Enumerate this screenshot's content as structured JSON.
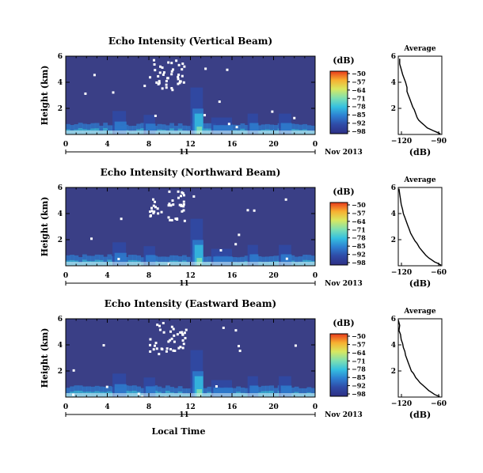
{
  "chart_data": [
    {
      "type": "heatmap",
      "title": "Echo Intensity (Vertical Beam)",
      "ylabel": "Height (km)",
      "x_tick_labels": [
        "0",
        "4",
        "8",
        "12",
        "16",
        "20",
        "0"
      ],
      "y_tick_labels": [
        "2",
        "4",
        "6"
      ],
      "xlim": [
        0,
        24
      ],
      "ylim": [
        0,
        6
      ],
      "day_label": "11",
      "date_label": "Nov 2013",
      "colorbar": {
        "unit_label": "(dB)",
        "tick_labels": [
          "−50",
          "−57",
          "−64",
          "−71",
          "−78",
          "−85",
          "−92",
          "−98"
        ],
        "range": [
          -98,
          -50
        ]
      },
      "profile": {
        "title": "Average",
        "xlabel": "(dB)",
        "x_tick_labels": [
          "−120",
          "−90"
        ],
        "xlim": [
          -120,
          -90
        ],
        "y_tick_labels": [
          "2",
          "4",
          "6"
        ],
        "ylim": [
          0,
          6
        ],
        "x": [
          -119,
          -119,
          -118,
          -117,
          -116,
          -115,
          -114,
          -114,
          -113,
          -112,
          -111,
          -110,
          -109,
          -108,
          -107,
          -106,
          -104,
          -102,
          -100,
          -98,
          -96,
          -94,
          -92,
          -91
        ],
        "y": [
          5.8,
          5.4,
          5.0,
          4.6,
          4.3,
          4.0,
          3.6,
          3.3,
          3.0,
          2.7,
          2.4,
          2.1,
          1.9,
          1.6,
          1.3,
          1.1,
          0.9,
          0.7,
          0.5,
          0.4,
          0.3,
          0.2,
          0.1,
          0.05
        ]
      }
    },
    {
      "type": "heatmap",
      "title": "Echo Intensity (Northward Beam)",
      "ylabel": "Height (km)",
      "x_tick_labels": [
        "0",
        "4",
        "8",
        "12",
        "16",
        "20",
        "0"
      ],
      "y_tick_labels": [
        "2",
        "4",
        "6"
      ],
      "xlim": [
        0,
        24
      ],
      "ylim": [
        0,
        6
      ],
      "day_label": "11",
      "date_label": "Nov 2013",
      "colorbar": {
        "unit_label": "(dB)",
        "tick_labels": [
          "−50",
          "−57",
          "−64",
          "−71",
          "−78",
          "−85",
          "−92",
          "−98"
        ],
        "range": [
          -98,
          -50
        ]
      },
      "profile": {
        "title": "Average",
        "xlabel": "(dB)",
        "x_tick_labels": [
          "−120",
          "−60"
        ],
        "xlim": [
          -120,
          -60
        ],
        "y_tick_labels": [
          "2",
          "4",
          "6"
        ],
        "ylim": [
          0,
          6
        ],
        "x": [
          -119,
          -118,
          -117,
          -116,
          -114,
          -113,
          -111,
          -109,
          -107,
          -105,
          -103,
          -100,
          -97,
          -94,
          -91,
          -88,
          -85,
          -82,
          -78,
          -74,
          -70,
          -66,
          -63,
          -61
        ],
        "y": [
          5.9,
          5.5,
          5.1,
          4.7,
          4.3,
          4.0,
          3.7,
          3.4,
          3.1,
          2.8,
          2.5,
          2.2,
          1.9,
          1.7,
          1.4,
          1.2,
          1.0,
          0.8,
          0.6,
          0.45,
          0.3,
          0.2,
          0.1,
          0.05
        ]
      }
    },
    {
      "type": "heatmap",
      "title": "Echo Intensity (Eastward Beam)",
      "ylabel": "Height (km)",
      "x_tick_labels": [
        "0",
        "4",
        "8",
        "12",
        "16",
        "20",
        "0"
      ],
      "y_tick_labels": [
        "2",
        "4",
        "6"
      ],
      "xlim": [
        0,
        24
      ],
      "ylim": [
        0,
        6
      ],
      "day_label": "11",
      "date_label": "Nov 2013",
      "xlabel": "Local Time",
      "colorbar": {
        "unit_label": "(dB)",
        "tick_labels": [
          "−50",
          "−57",
          "−64",
          "−71",
          "−78",
          "−85",
          "−92",
          "−98"
        ],
        "range": [
          -98,
          -50
        ]
      },
      "profile": {
        "title": "Average",
        "xlabel": "(dB)",
        "x_tick_labels": [
          "−120",
          "−60"
        ],
        "xlim": [
          -120,
          -60
        ],
        "y_tick_labels": [
          "2",
          "4",
          "6"
        ],
        "ylim": [
          0,
          6
        ],
        "x": [
          -120,
          -118,
          -119,
          -117,
          -116,
          -114,
          -113,
          -111,
          -110,
          -108,
          -106,
          -104,
          -102,
          -99,
          -96,
          -93,
          -90,
          -86,
          -82,
          -78,
          -74,
          -70,
          -66,
          -63
        ],
        "y": [
          5.9,
          5.5,
          5.1,
          4.8,
          4.4,
          4.1,
          3.8,
          3.5,
          3.2,
          2.9,
          2.6,
          2.3,
          2.0,
          1.8,
          1.5,
          1.3,
          1.1,
          0.9,
          0.7,
          0.5,
          0.35,
          0.2,
          0.1,
          0.05
        ]
      }
    }
  ],
  "colors": {
    "background_field": "#3a3f86",
    "colorbar_stops": [
      "#2e2f85",
      "#2f4aa6",
      "#2d7fd1",
      "#35c0e0",
      "#7fe0b0",
      "#d8e860",
      "#f7b030",
      "#e83a1c"
    ]
  }
}
